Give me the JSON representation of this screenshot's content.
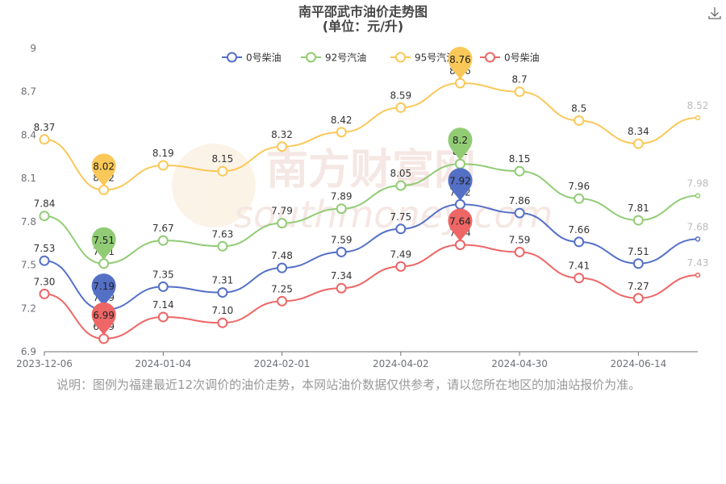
{
  "chart_data": {
    "type": "line",
    "title": "南平邵武市油价走势图",
    "subtitle": "(单位：元/升)",
    "x_tick_labels": [
      "2023-12-06",
      "2024-01-04",
      "2024-02-01",
      "2024-04-02",
      "2024-04-30",
      "2024-06-14"
    ],
    "y_ticks": [
      6.9,
      7.2,
      7.5,
      7.8,
      8.1,
      8.4,
      8.7,
      9
    ],
    "ylim": [
      6.9,
      9
    ],
    "grid": false,
    "legend_position": "top",
    "series": [
      {
        "name": "0号柴油",
        "color": "#5470c6",
        "values": [
          7.53,
          7.19,
          7.35,
          7.31,
          7.48,
          7.59,
          7.75,
          7.92,
          7.86,
          7.66,
          7.51,
          7.68
        ],
        "labels": [
          "7.53",
          "7.19",
          "7.35",
          "7.31",
          "7.48",
          "7.59",
          "7.75",
          "7.92",
          "7.86",
          "7.66",
          "7.51",
          "7.68"
        ]
      },
      {
        "name": "92号汽油",
        "color": "#91cc75",
        "values": [
          7.84,
          7.51,
          7.67,
          7.63,
          7.79,
          7.89,
          8.05,
          8.2,
          8.15,
          7.96,
          7.81,
          7.98
        ],
        "labels": [
          "7.84",
          "7.51",
          "7.67",
          "7.63",
          "7.79",
          "7.89",
          "8.05",
          "8.2",
          "8.15",
          "7.96",
          "7.81",
          "7.98"
        ]
      },
      {
        "name": "95号汽油",
        "color": "#fac858",
        "values": [
          8.37,
          8.02,
          8.19,
          8.15,
          8.32,
          8.42,
          8.59,
          8.76,
          8.7,
          8.5,
          8.34,
          8.52
        ],
        "labels": [
          "8.37",
          "8.02",
          "8.19",
          "8.15",
          "8.32",
          "8.42",
          "8.59",
          "8.76",
          "8.7",
          "8.5",
          "8.34",
          "8.52"
        ]
      },
      {
        "name": "0号柴油",
        "color": "#ee6666",
        "values": [
          7.3,
          6.99,
          7.14,
          7.1,
          7.25,
          7.34,
          7.49,
          7.64,
          7.59,
          7.41,
          7.27,
          7.43
        ],
        "labels": [
          "7.30",
          "6.99",
          "7.14",
          "7.10",
          "7.25",
          "7.34",
          "7.49",
          "7.64",
          "7.59",
          "7.41",
          "7.27",
          "7.43"
        ]
      }
    ],
    "markers": [
      {
        "series": 2,
        "index": 1,
        "label": "8.02"
      },
      {
        "series": 2,
        "index": 7,
        "label": "8.76"
      },
      {
        "series": 1,
        "index": 1,
        "label": "7.51"
      },
      {
        "series": 1,
        "index": 7,
        "label": "8.2"
      },
      {
        "series": 0,
        "index": 1,
        "label": "7.19"
      },
      {
        "series": 0,
        "index": 7,
        "label": "7.92"
      },
      {
        "series": 3,
        "index": 1,
        "label": "6.99"
      },
      {
        "series": 3,
        "index": 7,
        "label": "7.64"
      }
    ]
  },
  "note": "说明：图例为福建最近12次调价的油价走势，本网站油价数据仅供参考，请以您所在地区的加油站报价为准。",
  "watermark": "南方财富网 southmoney.com",
  "icons": {
    "download": "download-icon"
  }
}
